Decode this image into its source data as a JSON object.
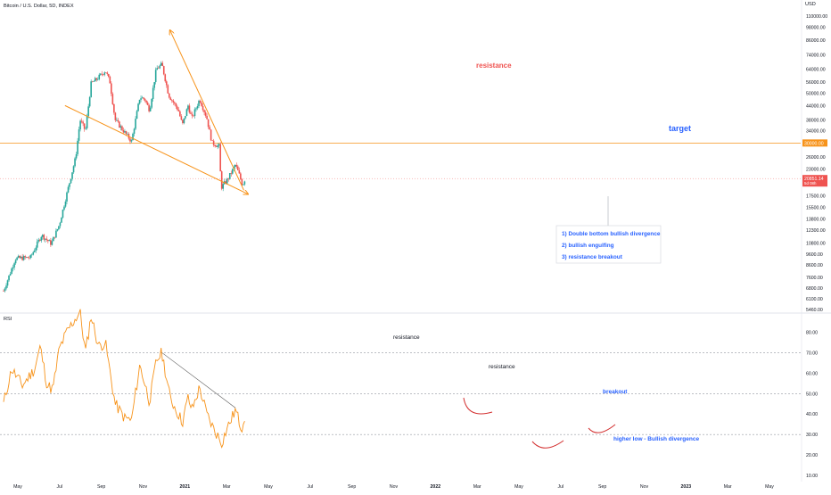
{
  "header": {
    "symbol_title": "Bitcoin / U.S. Dollar, 5D, INDEX",
    "currency": "USD"
  },
  "rsi_panel": {
    "label": "RSI"
  },
  "colors": {
    "up": "#26a69a",
    "down": "#ef5350",
    "trend": "#f7931a",
    "rsi_line": "#f7931a",
    "price_tag": "#ef5350",
    "target_tag": "#f7931a",
    "annotation_blue": "#2962ff",
    "annotation_red": "#ef5350",
    "divergence_arc": "#d32f2f",
    "rsi_trend_line": "#555555"
  },
  "x_axis": {
    "labels": [
      "May",
      "Jul",
      "Sep",
      "Nov",
      "2021",
      "Mar",
      "May",
      "Jul",
      "Sep",
      "Nov",
      "2022",
      "Mar",
      "May",
      "Jul",
      "Sep",
      "Nov",
      "2023",
      "Mar",
      "May"
    ]
  },
  "annotations": {
    "price_resistance": "resistance",
    "target": "target",
    "rsi_resistance_1": "resistance",
    "rsi_resistance_2": "resistance",
    "rsi_breakout": "breakout",
    "rsi_divergence": "higher low - Bullish divergence"
  },
  "callout": {
    "lines": [
      "1) Double bottom bullish divergence",
      "2) bullish engulfing",
      "3) resistance breakout"
    ]
  },
  "price_tags": {
    "target_value": "30000.00",
    "last_value": "20851.14",
    "countdown": "5d 08h"
  },
  "chart_data": [
    {
      "type": "candlestick",
      "title": "Bitcoin / U.S. Dollar, 5D, INDEX",
      "ylabel": "USD",
      "y_scale": "log",
      "y_ticks": [
        5460,
        6100,
        6800,
        7600,
        8600,
        9600,
        10800,
        12300,
        13800,
        15500,
        17500,
        20000,
        23000,
        26000,
        30000,
        34000,
        38000,
        44000,
        50000,
        56000,
        64000,
        74000,
        86000,
        98000,
        110000
      ],
      "y_tick_labels": [
        "5460.00",
        "6100.00",
        "6800.00",
        "7600.00",
        "8600.00",
        "9600.00",
        "10800.00",
        "12300.00",
        "13800.00",
        "15500.00",
        "17500.00",
        "20000.00",
        "23000.00",
        "26000.00",
        "30000.00",
        "34000.00",
        "38000.00",
        "44000.00",
        "50000.00",
        "56000.00",
        "64000.00",
        "74000.00",
        "86000.00",
        "98000.00",
        "110000.00"
      ],
      "series_close_anchors": [
        {
          "date": "2020-04-01",
          "close": 6600
        },
        {
          "date": "2020-05-15",
          "close": 9200
        },
        {
          "date": "2020-07-10",
          "close": 9300
        },
        {
          "date": "2020-08-20",
          "close": 11700
        },
        {
          "date": "2020-09-25",
          "close": 10700
        },
        {
          "date": "2020-10-25",
          "close": 13000
        },
        {
          "date": "2020-11-25",
          "close": 18500
        },
        {
          "date": "2020-12-25",
          "close": 26000
        },
        {
          "date": "2021-01-10",
          "close": 38000
        },
        {
          "date": "2021-01-30",
          "close": 34000
        },
        {
          "date": "2021-02-20",
          "close": 55000
        },
        {
          "date": "2021-03-15",
          "close": 58000
        },
        {
          "date": "2021-04-14",
          "close": 63000
        },
        {
          "date": "2021-05-01",
          "close": 56000
        },
        {
          "date": "2021-05-20",
          "close": 38000
        },
        {
          "date": "2021-06-20",
          "close": 34000
        },
        {
          "date": "2021-07-20",
          "close": 30500
        },
        {
          "date": "2021-08-20",
          "close": 48000
        },
        {
          "date": "2021-09-07",
          "close": 47000
        },
        {
          "date": "2021-09-25",
          "close": 42000
        },
        {
          "date": "2021-10-20",
          "close": 64000
        },
        {
          "date": "2021-11-10",
          "close": 67000
        },
        {
          "date": "2021-12-05",
          "close": 49000
        },
        {
          "date": "2022-01-10",
          "close": 42000
        },
        {
          "date": "2022-01-25",
          "close": 36000
        },
        {
          "date": "2022-02-15",
          "close": 44000
        },
        {
          "date": "2022-03-01",
          "close": 38500
        },
        {
          "date": "2022-03-30",
          "close": 47000
        },
        {
          "date": "2022-04-25",
          "close": 39000
        },
        {
          "date": "2022-05-15",
          "close": 30000
        },
        {
          "date": "2022-06-10",
          "close": 29000
        },
        {
          "date": "2022-06-18",
          "close": 19000
        },
        {
          "date": "2022-07-10",
          "close": 20500
        },
        {
          "date": "2022-08-10",
          "close": 24000
        },
        {
          "date": "2022-08-25",
          "close": 21500
        },
        {
          "date": "2022-09-05",
          "close": 19500
        },
        {
          "date": "2022-09-15",
          "close": 20851
        }
      ],
      "horizontal_lines": [
        {
          "value": 30000,
          "label": "30000.00"
        }
      ],
      "trendlines": [
        {
          "name": "support",
          "from": {
            "date": "2020-11-15",
            "price": 44000
          },
          "to": {
            "date": "2022-09-25",
            "price": 17800
          }
        },
        {
          "name": "resistance",
          "from": {
            "date": "2021-12-10",
            "price": 95000
          },
          "to": {
            "date": "2022-09-10",
            "price": 18500
          }
        }
      ]
    },
    {
      "type": "line",
      "title": "RSI",
      "ylim": [
        10,
        90
      ],
      "y_ticks": [
        10,
        20,
        30,
        40,
        50,
        60,
        70,
        80
      ],
      "y_tick_labels": [
        "10.00",
        "20.00",
        "30.00",
        "40.00",
        "50.00",
        "60.00",
        "70.00",
        "80.00"
      ],
      "bands": [
        70,
        50,
        30
      ],
      "series_anchors": [
        {
          "date": "2020-04-01",
          "rsi": 45
        },
        {
          "date": "2020-05-01",
          "rsi": 62
        },
        {
          "date": "2020-06-10",
          "rsi": 54
        },
        {
          "date": "2020-07-25",
          "rsi": 62
        },
        {
          "date": "2020-08-15",
          "rsi": 73
        },
        {
          "date": "2020-09-10",
          "rsi": 54
        },
        {
          "date": "2020-10-01",
          "rsi": 52
        },
        {
          "date": "2020-10-25",
          "rsi": 72
        },
        {
          "date": "2020-11-25",
          "rsi": 81
        },
        {
          "date": "2021-01-10",
          "rsi": 90
        },
        {
          "date": "2021-01-30",
          "rsi": 70
        },
        {
          "date": "2021-02-20",
          "rsi": 88
        },
        {
          "date": "2021-03-20",
          "rsi": 73
        },
        {
          "date": "2021-04-14",
          "rsi": 75
        },
        {
          "date": "2021-05-20",
          "rsi": 45
        },
        {
          "date": "2021-06-25",
          "rsi": 38
        },
        {
          "date": "2021-07-20",
          "rsi": 37
        },
        {
          "date": "2021-08-20",
          "rsi": 64
        },
        {
          "date": "2021-09-25",
          "rsi": 46
        },
        {
          "date": "2021-10-20",
          "rsi": 66
        },
        {
          "date": "2021-11-10",
          "rsi": 70
        },
        {
          "date": "2021-12-10",
          "rsi": 48
        },
        {
          "date": "2022-01-25",
          "rsi": 36
        },
        {
          "date": "2022-02-15",
          "rsi": 48
        },
        {
          "date": "2022-03-01",
          "rsi": 42
        },
        {
          "date": "2022-03-30",
          "rsi": 53
        },
        {
          "date": "2022-04-25",
          "rsi": 40
        },
        {
          "date": "2022-05-20",
          "rsi": 33
        },
        {
          "date": "2022-06-20",
          "rsi": 26
        },
        {
          "date": "2022-07-10",
          "rsi": 33
        },
        {
          "date": "2022-08-10",
          "rsi": 42
        },
        {
          "date": "2022-09-01",
          "rsi": 33
        },
        {
          "date": "2022-09-15",
          "rsi": 40
        }
      ],
      "trendlines": [
        {
          "name": "resistance",
          "from": {
            "date": "2021-11-10",
            "rsi": 70
          },
          "to": {
            "date": "2022-08-10",
            "rsi": 43
          }
        }
      ]
    }
  ]
}
